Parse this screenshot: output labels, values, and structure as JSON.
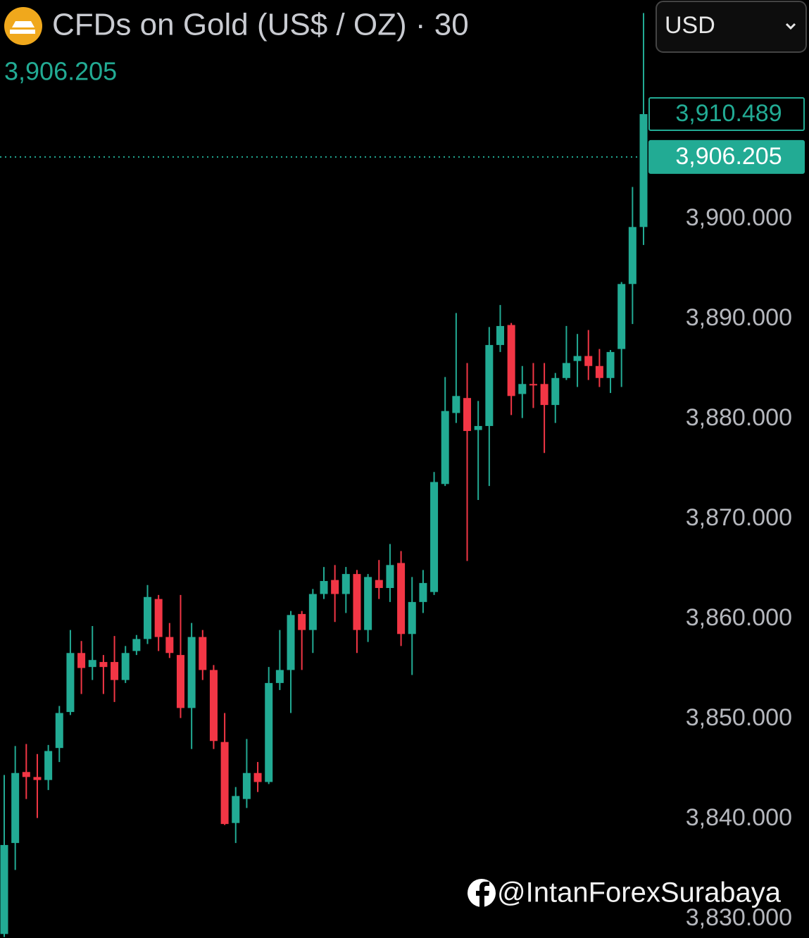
{
  "chart_data": {
    "type": "candlestick",
    "title": "CFDs on Gold (US$ / OZ) · 30",
    "header_price": "3,906.205",
    "currency": "USD",
    "watermark": "@IntanForexSurabaya",
    "up_color": "#22ab94",
    "down_color": "#f23645",
    "open": [
      3828.5,
      3837.6,
      3844.7,
      3844.2,
      3843.9,
      3847.1,
      3850.7,
      3856.6,
      3855.2,
      3855.7,
      3855.7,
      3853.9,
      3856.8,
      3858.0,
      3862.0,
      3858.2,
      3856.4,
      3851.1,
      3858.2,
      3854.9,
      3847.7,
      3839.6,
      3842.0,
      3844.6,
      3843.7,
      3853.6,
      3854.9,
      3860.5,
      3858.9,
      3862.5,
      3863.9,
      3862.5,
      3864.5,
      3858.9,
      3863.9,
      3863.1,
      3865.6,
      3858.5,
      3861.7,
      3862.7,
      3873.5,
      3880.6,
      3882.1,
      3878.9,
      3879.3,
      3887.4,
      3889.4,
      3882.5,
      3883.5,
      3883.5,
      3881.4,
      3884.1,
      3885.8,
      3886.3,
      3885.3,
      3884.1,
      3887.0,
      3893.5,
      3899.2
    ],
    "high": [
      3844.4,
      3847.3,
      3847.5,
      3846.5,
      3847.4,
      3851.3,
      3858.9,
      3857.8,
      3859.3,
      3856.4,
      3858.3,
      3857.3,
      3858.4,
      3863.4,
      3862.4,
      3859.6,
      3862.4,
      3859.6,
      3858.9,
      3855.4,
      3850.6,
      3843.2,
      3848.0,
      3845.7,
      3855.2,
      3858.9,
      3860.8,
      3860.8,
      3863.0,
      3865.2,
      3865.4,
      3865.2,
      3864.9,
      3864.5,
      3865.9,
      3867.5,
      3866.8,
      3864.2,
      3864.9,
      3874.7,
      3884.2,
      3890.6,
      3885.6,
      3881.8,
      3889.2,
      3891.4,
      3889.6,
      3885.3,
      3885.6,
      3885.6,
      3884.6,
      3889.3,
      3888.5,
      3888.9,
      3887.0,
      3886.9,
      3893.7,
      3903.2,
      3920.6
    ],
    "low": [
      3828.2,
      3834.9,
      3842.0,
      3840.1,
      3842.9,
      3845.7,
      3850.4,
      3852.5,
      3853.9,
      3852.5,
      3851.7,
      3853.6,
      3856.4,
      3857.5,
      3856.8,
      3856.1,
      3850.1,
      3847.0,
      3853.9,
      3847.0,
      3839.4,
      3837.6,
      3841.1,
      3842.7,
      3843.5,
      3852.9,
      3850.6,
      3854.9,
      3856.6,
      3862.0,
      3859.7,
      3860.6,
      3856.6,
      3857.7,
      3862.0,
      3861.7,
      3857.3,
      3854.4,
      3860.6,
      3862.4,
      3873.3,
      3879.6,
      3865.8,
      3871.9,
      3873.3,
      3886.7,
      3880.4,
      3880.1,
      3881.1,
      3876.6,
      3879.6,
      3883.9,
      3883.2,
      3883.9,
      3883.2,
      3882.6,
      3883.2,
      3889.5,
      3897.4
    ],
    "close": [
      3837.4,
      3844.6,
      3844.2,
      3843.9,
      3846.8,
      3850.6,
      3856.6,
      3855.1,
      3855.9,
      3855.2,
      3853.9,
      3856.6,
      3858.0,
      3862.2,
      3858.2,
      3856.6,
      3851.1,
      3858.2,
      3854.9,
      3847.8,
      3839.5,
      3842.3,
      3844.6,
      3843.7,
      3853.6,
      3854.9,
      3860.4,
      3858.9,
      3862.5,
      3863.8,
      3862.5,
      3864.5,
      3858.9,
      3864.2,
      3863.1,
      3865.4,
      3858.5,
      3861.7,
      3863.6,
      3873.7,
      3880.8,
      3882.3,
      3878.8,
      3879.3,
      3887.4,
      3889.3,
      3882.3,
      3883.5,
      3883.4,
      3881.4,
      3884.1,
      3885.6,
      3886.3,
      3885.3,
      3884.1,
      3886.7,
      3893.5,
      3899.2,
      3910.489
    ],
    "ylim": [
      3828.1,
      3921.9
    ],
    "yticks": [
      {
        "value": 3830,
        "label": "3,830.000"
      },
      {
        "value": 3840,
        "label": "3,840.000"
      },
      {
        "value": 3850,
        "label": "3,850.000"
      },
      {
        "value": 3860,
        "label": "3,860.000"
      },
      {
        "value": 3870,
        "label": "3,870.000"
      },
      {
        "value": 3880,
        "label": "3,880.000"
      },
      {
        "value": 3890,
        "label": "3,890.000"
      },
      {
        "value": 3900,
        "label": "3,900.000"
      }
    ],
    "price_markers": [
      {
        "value": 3910.489,
        "label": "3,910.489",
        "style": "outline",
        "line": false
      },
      {
        "value": 3906.205,
        "label": "3,906.205",
        "style": "filled",
        "line": true
      }
    ]
  }
}
